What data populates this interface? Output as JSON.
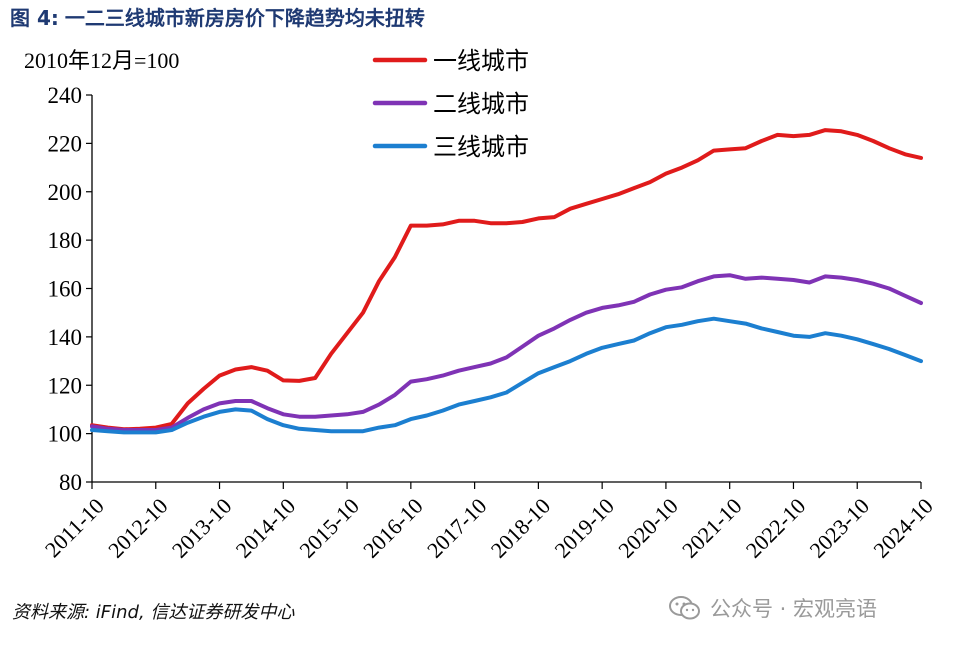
{
  "figure": {
    "number_label": "图 4:",
    "title": "一二三线城市新房房价下降趋势均未扭转"
  },
  "source": "资料来源: iFind, 信达证券研发中心",
  "watermark": {
    "text": "公众号 · 宏观亮语",
    "icon": "wechat-icon",
    "color": "#9a9a9a"
  },
  "chart_data": {
    "type": "line",
    "unit_note": "2010年12月=100",
    "title": "",
    "xlabel": "",
    "ylabel": "",
    "ylim": [
      80,
      240
    ],
    "yticks": [
      80,
      100,
      120,
      140,
      160,
      180,
      200,
      220,
      240
    ],
    "x_range": [
      "2011-10",
      "2024-10"
    ],
    "xticks": [
      "2011-10",
      "2012-10",
      "2013-10",
      "2014-10",
      "2015-10",
      "2016-10",
      "2017-10",
      "2018-10",
      "2019-10",
      "2020-10",
      "2021-10",
      "2022-10",
      "2023-10",
      "2024-10"
    ],
    "grid": false,
    "legend_position": "top-center",
    "series": [
      {
        "name": "一线城市",
        "color": "#e01b1b",
        "points": [
          [
            "2011-10",
            103.5
          ],
          [
            "2012-01",
            102.5
          ],
          [
            "2012-04",
            101.8
          ],
          [
            "2012-07",
            102.0
          ],
          [
            "2012-10",
            102.5
          ],
          [
            "2013-01",
            104.0
          ],
          [
            "2013-04",
            112.5
          ],
          [
            "2013-07",
            118.5
          ],
          [
            "2013-10",
            124.0
          ],
          [
            "2014-01",
            126.5
          ],
          [
            "2014-04",
            127.5
          ],
          [
            "2014-07",
            126.0
          ],
          [
            "2014-10",
            122.0
          ],
          [
            "2015-01",
            121.8
          ],
          [
            "2015-04",
            123.0
          ],
          [
            "2015-07",
            133.0
          ],
          [
            "2015-10",
            141.5
          ],
          [
            "2016-01",
            150.0
          ],
          [
            "2016-04",
            163.0
          ],
          [
            "2016-07",
            173.0
          ],
          [
            "2016-10",
            186.0
          ],
          [
            "2017-01",
            186.0
          ],
          [
            "2017-04",
            186.5
          ],
          [
            "2017-07",
            188.0
          ],
          [
            "2017-10",
            188.0
          ],
          [
            "2018-01",
            187.0
          ],
          [
            "2018-04",
            187.0
          ],
          [
            "2018-07",
            187.5
          ],
          [
            "2018-10",
            189.0
          ],
          [
            "2019-01",
            189.5
          ],
          [
            "2019-04",
            193.0
          ],
          [
            "2019-07",
            195.0
          ],
          [
            "2019-10",
            197.0
          ],
          [
            "2020-01",
            199.0
          ],
          [
            "2020-04",
            201.5
          ],
          [
            "2020-07",
            204.0
          ],
          [
            "2020-10",
            207.5
          ],
          [
            "2021-01",
            210.0
          ],
          [
            "2021-04",
            213.0
          ],
          [
            "2021-07",
            217.0
          ],
          [
            "2021-10",
            217.5
          ],
          [
            "2022-01",
            218.0
          ],
          [
            "2022-04",
            221.0
          ],
          [
            "2022-07",
            223.5
          ],
          [
            "2022-10",
            223.0
          ],
          [
            "2023-01",
            223.5
          ],
          [
            "2023-04",
            225.5
          ],
          [
            "2023-07",
            225.0
          ],
          [
            "2023-10",
            223.5
          ],
          [
            "2024-01",
            221.0
          ],
          [
            "2024-04",
            218.0
          ],
          [
            "2024-07",
            215.5
          ],
          [
            "2024-10",
            214.0
          ]
        ]
      },
      {
        "name": "二线城市",
        "color": "#7f33b5",
        "points": [
          [
            "2011-10",
            103.0
          ],
          [
            "2012-01",
            102.0
          ],
          [
            "2012-04",
            101.5
          ],
          [
            "2012-07",
            101.5
          ],
          [
            "2012-10",
            101.5
          ],
          [
            "2013-01",
            102.5
          ],
          [
            "2013-04",
            106.5
          ],
          [
            "2013-07",
            110.0
          ],
          [
            "2013-10",
            112.5
          ],
          [
            "2014-01",
            113.5
          ],
          [
            "2014-04",
            113.5
          ],
          [
            "2014-07",
            110.5
          ],
          [
            "2014-10",
            108.0
          ],
          [
            "2015-01",
            107.0
          ],
          [
            "2015-04",
            107.0
          ],
          [
            "2015-07",
            107.5
          ],
          [
            "2015-10",
            108.0
          ],
          [
            "2016-01",
            109.0
          ],
          [
            "2016-04",
            112.0
          ],
          [
            "2016-07",
            116.0
          ],
          [
            "2016-10",
            121.5
          ],
          [
            "2017-01",
            122.5
          ],
          [
            "2017-04",
            124.0
          ],
          [
            "2017-07",
            126.0
          ],
          [
            "2017-10",
            127.5
          ],
          [
            "2018-01",
            129.0
          ],
          [
            "2018-04",
            131.5
          ],
          [
            "2018-07",
            136.0
          ],
          [
            "2018-10",
            140.5
          ],
          [
            "2019-01",
            143.5
          ],
          [
            "2019-04",
            147.0
          ],
          [
            "2019-07",
            150.0
          ],
          [
            "2019-10",
            152.0
          ],
          [
            "2020-01",
            153.0
          ],
          [
            "2020-04",
            154.5
          ],
          [
            "2020-07",
            157.5
          ],
          [
            "2020-10",
            159.5
          ],
          [
            "2021-01",
            160.5
          ],
          [
            "2021-04",
            163.0
          ],
          [
            "2021-07",
            165.0
          ],
          [
            "2021-10",
            165.5
          ],
          [
            "2022-01",
            164.0
          ],
          [
            "2022-04",
            164.5
          ],
          [
            "2022-07",
            164.0
          ],
          [
            "2022-10",
            163.5
          ],
          [
            "2023-01",
            162.5
          ],
          [
            "2023-04",
            165.0
          ],
          [
            "2023-07",
            164.5
          ],
          [
            "2023-10",
            163.5
          ],
          [
            "2024-01",
            162.0
          ],
          [
            "2024-04",
            160.0
          ],
          [
            "2024-07",
            157.0
          ],
          [
            "2024-10",
            154.0
          ]
        ]
      },
      {
        "name": "三线城市",
        "color": "#1c7fd0",
        "points": [
          [
            "2011-10",
            101.5
          ],
          [
            "2012-01",
            101.0
          ],
          [
            "2012-04",
            100.5
          ],
          [
            "2012-07",
            100.5
          ],
          [
            "2012-10",
            100.5
          ],
          [
            "2013-01",
            101.5
          ],
          [
            "2013-04",
            104.5
          ],
          [
            "2013-07",
            107.0
          ],
          [
            "2013-10",
            109.0
          ],
          [
            "2014-01",
            110.0
          ],
          [
            "2014-04",
            109.5
          ],
          [
            "2014-07",
            106.0
          ],
          [
            "2014-10",
            103.5
          ],
          [
            "2015-01",
            102.0
          ],
          [
            "2015-04",
            101.5
          ],
          [
            "2015-07",
            101.0
          ],
          [
            "2015-10",
            101.0
          ],
          [
            "2016-01",
            101.0
          ],
          [
            "2016-04",
            102.5
          ],
          [
            "2016-07",
            103.5
          ],
          [
            "2016-10",
            106.0
          ],
          [
            "2017-01",
            107.5
          ],
          [
            "2017-04",
            109.5
          ],
          [
            "2017-07",
            112.0
          ],
          [
            "2017-10",
            113.5
          ],
          [
            "2018-01",
            115.0
          ],
          [
            "2018-04",
            117.0
          ],
          [
            "2018-07",
            121.0
          ],
          [
            "2018-10",
            125.0
          ],
          [
            "2019-01",
            127.5
          ],
          [
            "2019-04",
            130.0
          ],
          [
            "2019-07",
            133.0
          ],
          [
            "2019-10",
            135.5
          ],
          [
            "2020-01",
            137.0
          ],
          [
            "2020-04",
            138.5
          ],
          [
            "2020-07",
            141.5
          ],
          [
            "2020-10",
            144.0
          ],
          [
            "2021-01",
            145.0
          ],
          [
            "2021-04",
            146.5
          ],
          [
            "2021-07",
            147.5
          ],
          [
            "2021-10",
            146.5
          ],
          [
            "2022-01",
            145.5
          ],
          [
            "2022-04",
            143.5
          ],
          [
            "2022-07",
            142.0
          ],
          [
            "2022-10",
            140.5
          ],
          [
            "2023-01",
            140.0
          ],
          [
            "2023-04",
            141.5
          ],
          [
            "2023-07",
            140.5
          ],
          [
            "2023-10",
            139.0
          ],
          [
            "2024-01",
            137.0
          ],
          [
            "2024-04",
            135.0
          ],
          [
            "2024-07",
            132.5
          ],
          [
            "2024-10",
            130.0
          ]
        ]
      }
    ]
  }
}
